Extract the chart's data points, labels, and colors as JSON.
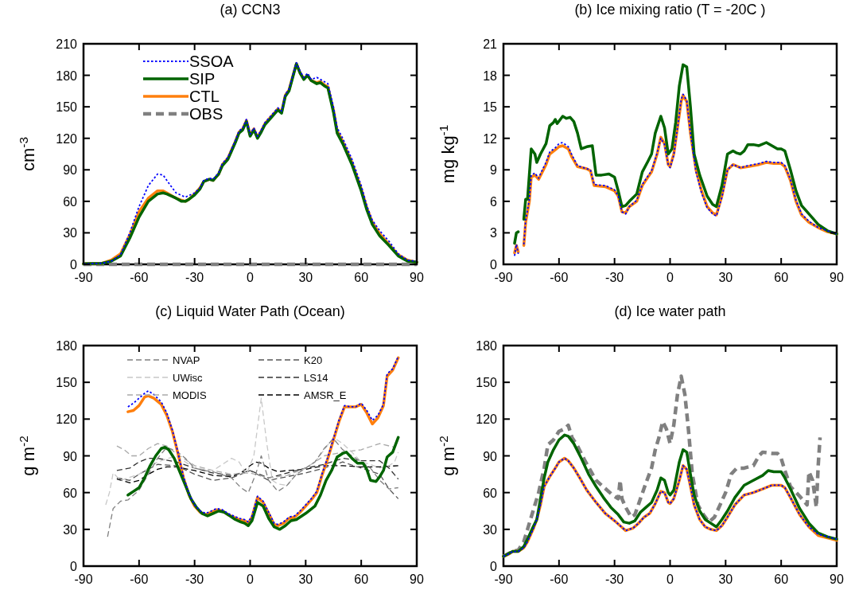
{
  "chart_data": [
    {
      "type": "line",
      "title": "(a) CCN3",
      "ylabel": "cm$^{-3}$",
      "xlim": [
        -90,
        90
      ],
      "xticks": [
        -90,
        -60,
        -30,
        0,
        30,
        60,
        90
      ],
      "ylim": [
        0,
        210
      ],
      "yticks": [
        0,
        30,
        60,
        90,
        120,
        150,
        180,
        210
      ],
      "legend": "top left",
      "series": [
        {
          "name": "SSOA",
          "color": "#0000ff",
          "line_style": "dotted",
          "x": [
            -90,
            -80,
            -75,
            -70,
            -65,
            -60,
            -55,
            -50,
            -47,
            -43,
            -40,
            -35,
            -30,
            -27,
            -25,
            -22,
            -20,
            -17,
            -15,
            -12,
            -10,
            -8,
            -6,
            -4,
            -2,
            0,
            2,
            4,
            6,
            8,
            10,
            13,
            15,
            17,
            19,
            21,
            23,
            25,
            27,
            29,
            31,
            33,
            36,
            38,
            40,
            42,
            45,
            47,
            50,
            55,
            60,
            63,
            66,
            70,
            75,
            80,
            85,
            90
          ],
          "values": [
            0.5,
            1,
            3,
            9,
            30,
            55,
            75,
            86,
            85,
            75,
            68,
            64,
            68,
            73,
            80,
            82,
            81,
            87,
            96,
            102,
            110,
            118,
            127,
            130,
            138,
            124,
            130,
            122,
            128,
            135,
            139,
            145,
            149,
            146,
            162,
            167,
            180,
            192,
            184,
            178,
            182,
            176,
            178,
            176,
            174,
            172,
            150,
            130,
            120,
            100,
            75,
            56,
            42,
            32,
            22,
            10,
            4,
            3
          ]
        },
        {
          "name": "SIP",
          "color": "#006400",
          "line_style": "solid",
          "x": [
            -90,
            -80,
            -75,
            -70,
            -65,
            -60,
            -55,
            -50,
            -47,
            -45,
            -40,
            -37,
            -35,
            -33,
            -30,
            -27,
            -25,
            -22,
            -20,
            -17,
            -15,
            -12,
            -10,
            -8,
            -6,
            -4,
            -2,
            0,
            2,
            4,
            6,
            8,
            10,
            13,
            15,
            17,
            19,
            21,
            23,
            25,
            27,
            29,
            31,
            33,
            36,
            38,
            40,
            42,
            45,
            47,
            50,
            55,
            60,
            63,
            66,
            70,
            75,
            80,
            85,
            90
          ],
          "values": [
            0.5,
            1,
            3,
            8,
            25,
            45,
            60,
            67,
            68,
            67,
            63,
            60,
            60,
            62,
            66,
            72,
            79,
            81,
            80,
            86,
            94,
            100,
            108,
            116,
            125,
            128,
            136,
            122,
            128,
            120,
            126,
            133,
            137,
            143,
            147,
            144,
            160,
            165,
            178,
            191,
            182,
            176,
            180,
            175,
            172,
            173,
            170,
            168,
            145,
            125,
            115,
            95,
            70,
            52,
            38,
            27,
            18,
            8,
            3,
            2
          ]
        },
        {
          "name": "CTL",
          "color": "#ff7f0e",
          "line_style": "solid",
          "x": [
            -90,
            -80,
            -75,
            -70,
            -65,
            -60,
            -55,
            -50,
            -47,
            -45,
            -40,
            -37,
            -35,
            -33,
            -30,
            -27,
            -25,
            -22,
            -20,
            -17,
            -15,
            -12,
            -10,
            -8,
            -6,
            -4,
            -2,
            0,
            2,
            4,
            6,
            8,
            10,
            13,
            15,
            17,
            19,
            21,
            23,
            25,
            27,
            29,
            31,
            33,
            36,
            38,
            40,
            42,
            45,
            47,
            50,
            55,
            60,
            63,
            66,
            70,
            75,
            80,
            85,
            90
          ],
          "values": [
            0.5,
            1,
            4,
            10,
            28,
            50,
            63,
            70,
            70,
            68,
            63,
            61,
            60,
            62,
            67,
            73,
            79,
            81,
            80,
            86,
            95,
            101,
            109,
            117,
            126,
            129,
            137,
            123,
            129,
            121,
            127,
            134,
            138,
            144,
            148,
            145,
            161,
            166,
            179,
            191,
            182,
            177,
            180,
            175,
            173,
            174,
            171,
            169,
            147,
            127,
            117,
            97,
            72,
            54,
            40,
            29,
            19,
            9,
            4,
            2
          ]
        },
        {
          "name": "OBS",
          "color": "#808080",
          "line_style": "dashed",
          "x": [
            -90,
            90
          ],
          "values": [
            0,
            0
          ]
        }
      ]
    },
    {
      "type": "line",
      "title": "(b) Ice mixing ratio (T = -20C )",
      "ylabel": "mg kg$^{-1}$",
      "xlim": [
        -90,
        90
      ],
      "xticks": [
        -90,
        -60,
        -30,
        0,
        30,
        60,
        90
      ],
      "ylim": [
        0,
        21
      ],
      "yticks": [
        0,
        3,
        6,
        9,
        12,
        15,
        18,
        21
      ],
      "series": [
        {
          "color": "#0000ff",
          "line_style": "dotted",
          "x": [
            -84,
            -83,
            -82,
            -81,
            -79,
            -78,
            -76,
            -75,
            -73,
            -71,
            -69,
            -67,
            -65,
            -62,
            -60,
            -58,
            -55,
            -53,
            -50,
            -45,
            -43,
            -41,
            -35,
            -30,
            -28,
            -26,
            -24,
            -22,
            -18,
            -15,
            -12,
            -10,
            -7,
            -5,
            -3,
            -1,
            0,
            2,
            4,
            6,
            7,
            9,
            11,
            14,
            17,
            20,
            23,
            25,
            28,
            31,
            34,
            38,
            42,
            48,
            52,
            56,
            60,
            62,
            65,
            68,
            71,
            75,
            80,
            85,
            90
          ],
          "values": [
            0.8,
            1.9,
            1,
            null,
            1.9,
            4.2,
            6.2,
            8.5,
            8.7,
            8.2,
            9,
            9.7,
            10.7,
            11.1,
            11.5,
            11.6,
            11.2,
            10.4,
            9.4,
            9.1,
            9,
            7.6,
            7.5,
            7.1,
            6.5,
            5,
            4.8,
            5.5,
            6.1,
            7.6,
            8.4,
            8.9,
            10.6,
            12,
            11.4,
            9.5,
            9.2,
            10.4,
            13,
            15.7,
            16.2,
            15.6,
            12.5,
            8.8,
            6.8,
            5.4,
            4.8,
            4.6,
            6.4,
            9,
            9.5,
            9.2,
            9.4,
            9.6,
            9.8,
            9.7,
            9.7,
            9.4,
            8.1,
            6.1,
            4.8,
            4.1,
            3.5,
            3.2,
            2.9
          ]
        },
        {
          "color": "#006400",
          "line_style": "solid",
          "x": [
            -84,
            -83,
            -82,
            -81,
            -79,
            -78,
            -77,
            -75,
            -73,
            -72,
            -70,
            -67,
            -65,
            -63,
            -62,
            -61,
            -58,
            -56,
            -54,
            -52,
            -50,
            -48,
            -45,
            -42,
            -40,
            -37,
            -33,
            -30,
            -28,
            -26,
            -24,
            -22,
            -18,
            -15,
            -12,
            -10,
            -8,
            -5,
            -3,
            -1,
            1,
            3,
            5,
            7,
            9,
            11,
            13,
            16,
            20,
            23,
            25,
            28,
            31,
            34,
            36,
            38,
            40,
            42,
            45,
            48,
            52,
            55,
            58,
            60,
            62,
            65,
            68,
            71,
            75,
            80,
            85,
            90
          ],
          "values": [
            2,
            3,
            3.1,
            null,
            4.3,
            6.2,
            6.2,
            11,
            10.5,
            9.7,
            10.5,
            11.5,
            13.2,
            13.5,
            13.8,
            13.4,
            14.1,
            13.9,
            14,
            13.6,
            12.5,
            11,
            11.2,
            11.3,
            8.5,
            8.5,
            8.6,
            8.3,
            7,
            5.5,
            5.6,
            6,
            6.7,
            8.8,
            9.8,
            10.5,
            12.5,
            14.1,
            13,
            10.5,
            11,
            13.5,
            17,
            19,
            18.8,
            15,
            10.5,
            8.5,
            6.5,
            5.7,
            5.5,
            7.5,
            10.5,
            10.8,
            10.6,
            10.5,
            10.8,
            11.4,
            11.4,
            11.3,
            11.6,
            11.3,
            11,
            11,
            10.8,
            9,
            7,
            5.6,
            4.8,
            3.8,
            3.2,
            2.9
          ]
        },
        {
          "color": "#ff7f0e",
          "line_style": "solid",
          "x": [
            -84,
            -83,
            -82,
            -81,
            -79,
            -78,
            -76,
            -75,
            -73,
            -71,
            -69,
            -67,
            -65,
            -62,
            -60,
            -58,
            -55,
            -53,
            -50,
            -45,
            -43,
            -41,
            -35,
            -30,
            -28,
            -26,
            -24,
            -22,
            -18,
            -15,
            -12,
            -10,
            -7,
            -5,
            -3,
            -1,
            0,
            2,
            4,
            6,
            7,
            9,
            11,
            14,
            17,
            20,
            23,
            25,
            28,
            31,
            34,
            38,
            42,
            48,
            52,
            56,
            60,
            62,
            65,
            68,
            71,
            75,
            80,
            85,
            90
          ],
          "values": [
            1.1,
            1.8,
            1.2,
            null,
            1.8,
            4,
            6,
            8.3,
            8.5,
            8.1,
            8.8,
            9.5,
            10.5,
            10.9,
            11.2,
            11.3,
            11,
            10.2,
            9.3,
            9.1,
            8.9,
            7.5,
            7.4,
            7,
            6.5,
            5,
            4.9,
            5.5,
            6,
            7.5,
            8.3,
            8.8,
            10.5,
            12.1,
            11.5,
            9.5,
            9.3,
            10.5,
            13,
            15.5,
            16.1,
            15.5,
            12.5,
            9,
            7,
            5.5,
            4.9,
            4.7,
            6.5,
            9,
            9.5,
            9.2,
            9.3,
            9.5,
            9.7,
            9.6,
            9.6,
            9.3,
            8,
            6,
            4.7,
            4,
            3.5,
            3.1,
            2.9
          ]
        }
      ]
    },
    {
      "type": "line",
      "title": "(c) Liquid Water Path (Ocean)",
      "ylabel": "g m$^{-2}$",
      "xlim": [
        -90,
        90
      ],
      "xticks": [
        -90,
        -60,
        -30,
        0,
        30,
        60,
        90
      ],
      "ylim": [
        0,
        180
      ],
      "yticks": [
        0,
        30,
        60,
        90,
        120,
        150,
        180
      ],
      "legend": "top",
      "series": [
        {
          "color": "#0000ff",
          "line_style": "dotted",
          "x": [
            -66,
            -63,
            -60,
            -57,
            -55,
            -52,
            -48,
            -45,
            -42,
            -39,
            -36,
            -33,
            -30,
            -27,
            -24,
            -21,
            -18,
            -15,
            -12,
            -9,
            -6,
            -3,
            -1,
            1,
            4,
            7,
            10,
            13,
            15,
            18,
            21,
            24,
            27,
            30,
            33,
            36,
            39,
            42,
            45,
            48,
            51,
            54,
            57,
            60,
            63,
            66,
            69,
            72,
            74,
            77,
            80
          ],
          "values": [
            130,
            133,
            137,
            141,
            143,
            140,
            134,
            125,
            111,
            93,
            73,
            59,
            50,
            45,
            43,
            45,
            47,
            46,
            43,
            41,
            39,
            38,
            36,
            41,
            57,
            53,
            44,
            35,
            34,
            36,
            40,
            41,
            45,
            50,
            55,
            61,
            76,
            89,
            104,
            119,
            131,
            130,
            130,
            133,
            127,
            119,
            123,
            132,
            157,
            161,
            171
          ]
        },
        {
          "color": "#006400",
          "line_style": "solid",
          "x": [
            -66,
            -63,
            -60,
            -57,
            -54,
            -51,
            -48,
            -46,
            -44,
            -41,
            -38,
            -35,
            -32,
            -29,
            -26,
            -23,
            -20,
            -17,
            -14,
            -11,
            -8,
            -5,
            -3,
            -1,
            1,
            4,
            7,
            10,
            13,
            16,
            19,
            22,
            25,
            30,
            35,
            38,
            41,
            44,
            47,
            50,
            52,
            55,
            58,
            61,
            63,
            65,
            68,
            70,
            72,
            74,
            77,
            80
          ],
          "values": [
            58,
            61,
            64,
            72,
            82,
            90,
            96,
            97,
            95,
            88,
            77,
            66,
            55,
            48,
            43,
            41,
            43,
            45,
            44,
            41,
            38,
            36,
            35,
            33,
            37,
            52,
            49,
            39,
            32,
            30,
            33,
            37,
            38,
            43,
            49,
            58,
            70,
            78,
            89,
            92,
            93,
            88,
            84,
            84,
            79,
            70,
            69,
            73,
            78,
            89,
            93,
            105
          ]
        },
        {
          "color": "#ff7f0e",
          "line_style": "solid",
          "x": [
            -66,
            -63,
            -60,
            -57,
            -55,
            -52,
            -48,
            -45,
            -42,
            -39,
            -36,
            -33,
            -30,
            -27,
            -24,
            -21,
            -18,
            -15,
            -12,
            -9,
            -6,
            -3,
            -1,
            1,
            4,
            7,
            10,
            13,
            15,
            18,
            21,
            24,
            27,
            30,
            33,
            36,
            39,
            42,
            45,
            48,
            51,
            54,
            57,
            60,
            63,
            66,
            69,
            72,
            74,
            77,
            80
          ],
          "values": [
            126,
            127,
            131,
            138,
            139,
            137,
            132,
            123,
            110,
            92,
            72,
            58,
            49,
            44,
            42,
            44,
            46,
            45,
            42,
            40,
            38,
            37,
            35,
            40,
            56,
            52,
            43,
            34,
            33,
            35,
            39,
            40,
            44,
            49,
            54,
            60,
            75,
            88,
            103,
            118,
            130,
            130,
            130,
            132,
            125,
            116,
            121,
            131,
            155,
            160,
            170
          ]
        },
        {
          "name": "NVAP",
          "color": "#808080",
          "line_style": "dashed",
          "x": [
            -77,
            -74,
            -70,
            -66,
            -60,
            -55,
            -50,
            -45,
            -40,
            -35,
            -30,
            -25,
            -20,
            -10,
            -5,
            -1,
            3,
            6,
            10,
            15,
            20,
            25,
            30,
            35,
            40,
            45,
            50,
            55,
            60,
            65,
            70,
            75,
            80
          ],
          "values": [
            24,
            47,
            53,
            54,
            62,
            75,
            88,
            97,
            94,
            88,
            80,
            78,
            77,
            72,
            64,
            60,
            75,
            90,
            70,
            61,
            66,
            75,
            80,
            85,
            96,
            104,
            95,
            90,
            85,
            80,
            70,
            63,
            64
          ]
        },
        {
          "name": "UWisc",
          "color": "#c8c8c8",
          "line_style": "dashed",
          "x": [
            -78,
            -76,
            -74,
            -72,
            -70,
            -60,
            -50,
            -40,
            -30,
            -20,
            -10,
            -6,
            -2,
            2,
            6,
            9,
            12,
            15,
            20,
            25,
            30,
            35,
            40,
            45,
            50,
            55,
            60,
            65,
            70,
            75,
            78,
            80
          ],
          "values": [
            50,
            60,
            76,
            73,
            70,
            75,
            85,
            90,
            80,
            78,
            88,
            85,
            75,
            90,
            137,
            100,
            70,
            67,
            66,
            75,
            80,
            85,
            95,
            105,
            100,
            93,
            85,
            83,
            80,
            82,
            85,
            93
          ]
        },
        {
          "name": "MODIS",
          "color": "#a9a9a9",
          "line_style": "dashed",
          "x": [
            -72,
            -68,
            -64,
            -60,
            -55,
            -50,
            -45,
            -40,
            -30,
            -20,
            -10,
            0,
            10,
            20,
            30,
            40,
            50,
            60,
            70,
            78
          ],
          "values": [
            98,
            95,
            90,
            90,
            96,
            100,
            98,
            92,
            82,
            78,
            75,
            76,
            72,
            74,
            80,
            90,
            93,
            95,
            100,
            97
          ]
        },
        {
          "name": "K20",
          "color": "#555555",
          "line_style": "dashed",
          "x": [
            -72,
            -65,
            -60,
            -50,
            -40,
            -30,
            -20,
            -10,
            0,
            10,
            20,
            30,
            40,
            50,
            60,
            70,
            75,
            80
          ],
          "values": [
            72,
            70,
            75,
            83,
            82,
            75,
            70,
            72,
            78,
            70,
            73,
            76,
            80,
            85,
            80,
            75,
            63,
            55
          ]
        },
        {
          "name": "LS14",
          "color": "#333333",
          "line_style": "dashed",
          "x": [
            -72,
            -65,
            -60,
            -55,
            -50,
            -40,
            -30,
            -20,
            -10,
            0,
            10,
            20,
            30,
            40,
            50,
            60,
            70,
            75,
            80
          ],
          "values": [
            78,
            80,
            85,
            88,
            88,
            85,
            80,
            76,
            74,
            78,
            72,
            76,
            80,
            83,
            88,
            86,
            86,
            80,
            71
          ]
        },
        {
          "name": "AMSR_E",
          "color": "#000000",
          "line_style": "dashed",
          "x": [
            -72,
            -65,
            -60,
            -55,
            -50,
            -45,
            -40,
            -30,
            -20,
            -10,
            -5,
            0,
            3,
            6,
            10,
            15,
            20,
            30,
            40,
            50,
            60,
            70,
            80
          ],
          "values": [
            71,
            68,
            70,
            75,
            79,
            81,
            81,
            78,
            74,
            73,
            76,
            82,
            85,
            84,
            80,
            77,
            78,
            79,
            82,
            82,
            81,
            81,
            82
          ]
        }
      ]
    },
    {
      "type": "line",
      "title": "(d) Ice water path",
      "ylabel": "g m$^{-2}$",
      "xlim": [
        -90,
        90
      ],
      "xticks": [
        -90,
        -60,
        -30,
        0,
        30,
        60,
        90
      ],
      "ylim": [
        0,
        180
      ],
      "yticks": [
        0,
        30,
        60,
        90,
        120,
        150,
        180
      ],
      "series": [
        {
          "color": "#0000ff",
          "line_style": "dotted",
          "x": [
            -90,
            -87,
            -85,
            -82,
            -79,
            -77,
            -74,
            -72,
            -70,
            -68,
            -65,
            -62,
            -60,
            -57,
            -55,
            -52,
            -48,
            -45,
            -40,
            -35,
            -30,
            -27,
            -24,
            -20,
            -17,
            -14,
            -11,
            -8,
            -5,
            -3,
            -1,
            0,
            2,
            5,
            7,
            9,
            11,
            13,
            16,
            19,
            22,
            25,
            28,
            31,
            35,
            40,
            45,
            50,
            55,
            60,
            62,
            65,
            70,
            75,
            80,
            85,
            90
          ],
          "values": [
            8,
            10,
            12,
            12,
            15,
            20,
            30,
            38,
            50,
            65,
            73,
            80,
            85,
            88,
            86,
            80,
            70,
            62,
            52,
            43,
            37,
            33,
            29,
            31,
            35,
            40,
            43,
            51,
            61,
            60,
            52,
            51,
            55,
            70,
            82,
            79,
            65,
            50,
            38,
            32,
            30,
            29,
            33,
            40,
            50,
            58,
            60,
            63,
            66,
            66,
            64,
            56,
            42,
            32,
            26,
            24,
            22
          ]
        },
        {
          "color": "#006400",
          "line_style": "solid",
          "x": [
            -90,
            -85,
            -82,
            -79,
            -77,
            -74,
            -72,
            -70,
            -68,
            -66,
            -63,
            -60,
            -57,
            -55,
            -52,
            -48,
            -44,
            -40,
            -36,
            -32,
            -28,
            -25,
            -22,
            -19,
            -16,
            -13,
            -10,
            -7,
            -5,
            -3,
            -1,
            0,
            2,
            5,
            7,
            9,
            11,
            13,
            16,
            19,
            22,
            25,
            28,
            31,
            35,
            40,
            45,
            50,
            53,
            56,
            60,
            62,
            65,
            70,
            75,
            80,
            85,
            90
          ],
          "values": [
            8,
            12,
            12,
            16,
            22,
            32,
            38,
            55,
            72,
            85,
            95,
            103,
            107,
            106,
            100,
            88,
            75,
            65,
            56,
            48,
            42,
            36,
            35,
            37,
            44,
            48,
            52,
            62,
            72,
            70,
            60,
            58,
            62,
            85,
            95,
            93,
            75,
            58,
            45,
            38,
            35,
            32,
            38,
            45,
            56,
            66,
            70,
            74,
            78,
            77,
            77,
            72,
            63,
            47,
            35,
            27,
            24,
            22
          ]
        },
        {
          "color": "#ff7f0e",
          "line_style": "solid",
          "x": [
            -90,
            -87,
            -85,
            -82,
            -79,
            -77,
            -74,
            -72,
            -70,
            -68,
            -65,
            -62,
            -60,
            -57,
            -55,
            -52,
            -48,
            -45,
            -40,
            -35,
            -30,
            -27,
            -24,
            -20,
            -17,
            -14,
            -11,
            -8,
            -5,
            -3,
            -1,
            0,
            2,
            5,
            7,
            9,
            11,
            13,
            16,
            19,
            22,
            25,
            28,
            31,
            35,
            40,
            45,
            50,
            55,
            60,
            62,
            65,
            70,
            75,
            80,
            85,
            90
          ],
          "values": [
            8,
            10,
            12,
            12,
            15,
            20,
            30,
            38,
            50,
            65,
            73,
            80,
            85,
            88,
            86,
            80,
            70,
            62,
            52,
            43,
            37,
            33,
            29,
            31,
            35,
            40,
            43,
            51,
            61,
            60,
            52,
            51,
            55,
            70,
            82,
            79,
            65,
            50,
            38,
            32,
            30,
            29,
            33,
            40,
            50,
            58,
            60,
            63,
            66,
            66,
            64,
            56,
            42,
            32,
            25,
            23,
            21
          ]
        },
        {
          "color": "#808080",
          "line_style": "dashed",
          "x": [
            -90,
            -85,
            -82,
            -79,
            -77,
            -74,
            -71,
            -68,
            -66,
            -63,
            -60,
            -57,
            -55,
            -53,
            -50,
            -46,
            -43,
            -40,
            -37,
            -34,
            -31,
            -28,
            -27,
            -26,
            -24,
            -21,
            -19,
            -16,
            -13,
            -10,
            -8,
            -6,
            -4,
            -2,
            0,
            2,
            4,
            6,
            8,
            10,
            12,
            15,
            18,
            21,
            24,
            27,
            30,
            33,
            36,
            40,
            45,
            48,
            50,
            55,
            58,
            60,
            62,
            65,
            70,
            74,
            75,
            77,
            79,
            80,
            81
          ],
          "values": [
            8,
            12,
            13,
            20,
            30,
            45,
            60,
            80,
            99,
            103,
            110,
            112,
            115,
            105,
            98,
            86,
            78,
            70,
            66,
            62,
            58,
            55,
            70,
            55,
            48,
            40,
            42,
            55,
            68,
            80,
            95,
            105,
            118,
            112,
            100,
            115,
            140,
            155,
            140,
            110,
            75,
            50,
            42,
            36,
            40,
            50,
            60,
            75,
            80,
            80,
            82,
            90,
            93,
            92,
            92,
            88,
            78,
            65,
            57,
            50,
            77,
            70,
            48,
            82,
            105
          ]
        }
      ]
    }
  ]
}
